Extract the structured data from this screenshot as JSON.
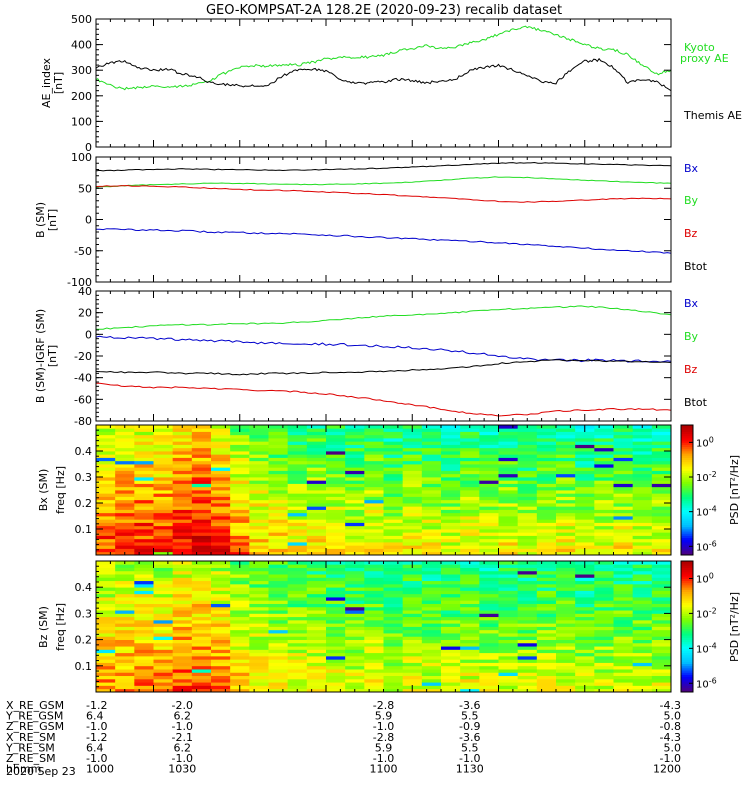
{
  "title": "GEO-KOMPSAT-2A 128.2E (2020-09-23) recalib dataset",
  "colors": {
    "black": "#000000",
    "green": "#22dd22",
    "red": "#dd0000",
    "blue": "#0000cc",
    "colorbar": [
      "#4b0082",
      "#0000ff",
      "#00bfff",
      "#00ffff",
      "#00ff7f",
      "#7fff00",
      "#ffff00",
      "#ffa500",
      "#ff0000",
      "#b00000"
    ]
  },
  "chart_data": [
    {
      "type": "line",
      "panel": "ae",
      "ylabel": "AE_index",
      "yunit": "[nT]",
      "ylim": [
        0,
        500
      ],
      "yticks": [
        0,
        100,
        200,
        300,
        400,
        500
      ],
      "xlim": [
        1000,
        1200
      ],
      "x": [
        1000,
        1005,
        1010,
        1015,
        1020,
        1025,
        1030,
        1035,
        1040,
        1045,
        1050,
        1055,
        1060,
        1065,
        1070,
        1075,
        1080,
        1085,
        1090,
        1095,
        1100,
        1105,
        1110,
        1115,
        1120,
        1125,
        1130,
        1135,
        1140,
        1145,
        1150,
        1155,
        1160,
        1165,
        1170,
        1175,
        1180,
        1185,
        1190,
        1195,
        1200
      ],
      "series": [
        {
          "name": "Kyoto proxy AE",
          "color": "green",
          "values": [
            265,
            240,
            228,
            232,
            240,
            235,
            238,
            245,
            262,
            290,
            310,
            318,
            316,
            322,
            320,
            330,
            345,
            350,
            352,
            350,
            358,
            375,
            385,
            395,
            385,
            390,
            405,
            420,
            440,
            460,
            470,
            455,
            440,
            420,
            400,
            385,
            380,
            360,
            320,
            285,
            300
          ]
        },
        {
          "name": "Themis AE",
          "color": "black",
          "values": [
            310,
            330,
            335,
            310,
            300,
            305,
            285,
            275,
            250,
            245,
            240,
            238,
            240,
            280,
            300,
            305,
            298,
            262,
            248,
            250,
            255,
            265,
            260,
            250,
            260,
            265,
            300,
            310,
            320,
            300,
            280,
            255,
            250,
            300,
            335,
            340,
            310,
            250,
            265,
            255,
            220
          ]
        }
      ]
    },
    {
      "type": "line",
      "panel": "bsm",
      "ylabel": "B (SM)",
      "yunit": "[nT]",
      "ylim": [
        -100,
        100
      ],
      "yticks": [
        -100,
        -50,
        0,
        50,
        100
      ],
      "xlim": [
        1000,
        1200
      ],
      "x": [
        1000,
        1010,
        1020,
        1030,
        1040,
        1050,
        1060,
        1070,
        1080,
        1090,
        1100,
        1110,
        1120,
        1130,
        1140,
        1150,
        1160,
        1170,
        1180,
        1190,
        1200
      ],
      "series": [
        {
          "name": "Bx",
          "color": "blue",
          "values": [
            -15,
            -16,
            -17,
            -18,
            -20,
            -21,
            -22,
            -23,
            -25,
            -27,
            -29,
            -31,
            -33,
            -35,
            -37,
            -40,
            -43,
            -46,
            -49,
            -51,
            -54
          ]
        },
        {
          "name": "By",
          "color": "green",
          "values": [
            52,
            54,
            56,
            57,
            58,
            58,
            57,
            56,
            56,
            57,
            58,
            60,
            63,
            66,
            68,
            67,
            65,
            63,
            61,
            59,
            58
          ]
        },
        {
          "name": "Bz",
          "color": "red",
          "values": [
            53,
            54,
            53,
            52,
            50,
            48,
            47,
            46,
            44,
            42,
            40,
            37,
            35,
            32,
            29,
            28,
            29,
            31,
            33,
            34,
            33
          ]
        },
        {
          "name": "Btot",
          "color": "black",
          "values": [
            78,
            79,
            80,
            81,
            80,
            80,
            79,
            79,
            80,
            81,
            82,
            84,
            86,
            88,
            90,
            91,
            90,
            89,
            88,
            87,
            86
          ]
        }
      ]
    },
    {
      "type": "line",
      "panel": "bsm_igrf",
      "ylabel": "B (SM)-IGRF (SM)",
      "yunit": "[nT]",
      "ylim": [
        -80,
        40
      ],
      "yticks": [
        -80,
        -60,
        -40,
        -20,
        0,
        20,
        40
      ],
      "xlim": [
        1000,
        1200
      ],
      "x": [
        1000,
        1010,
        1020,
        1030,
        1040,
        1050,
        1060,
        1070,
        1080,
        1090,
        1100,
        1110,
        1120,
        1130,
        1140,
        1150,
        1160,
        1170,
        1180,
        1190,
        1200
      ],
      "series": [
        {
          "name": "Bx",
          "color": "blue",
          "values": [
            -2,
            -3,
            -4,
            -5,
            -6,
            -7,
            -8,
            -8,
            -9,
            -10,
            -11,
            -12,
            -14,
            -17,
            -20,
            -23,
            -24,
            -24,
            -24,
            -25,
            -25
          ]
        },
        {
          "name": "By",
          "color": "green",
          "values": [
            5,
            6,
            8,
            9,
            9,
            10,
            10,
            11,
            13,
            15,
            17,
            18,
            19,
            21,
            23,
            24,
            25,
            26,
            24,
            21,
            18
          ]
        },
        {
          "name": "Bz",
          "color": "red",
          "values": [
            -45,
            -48,
            -49,
            -49,
            -50,
            -51,
            -52,
            -53,
            -55,
            -58,
            -61,
            -65,
            -69,
            -73,
            -75,
            -74,
            -71,
            -70,
            -69,
            -69,
            -70
          ]
        },
        {
          "name": "Btot",
          "color": "black",
          "values": [
            -34,
            -35,
            -35,
            -36,
            -36,
            -37,
            -36,
            -36,
            -35,
            -35,
            -34,
            -33,
            -32,
            -30,
            -27,
            -25,
            -24,
            -24,
            -25,
            -25,
            -26
          ]
        }
      ]
    },
    {
      "type": "heatmap",
      "panel": "bx_spec",
      "ylabel": "Bx (SM)",
      "y2label": "freq",
      "yunit": "[Hz]",
      "ylim": [
        0,
        0.5
      ],
      "yticks": [
        0.1,
        0.2,
        0.3,
        0.4
      ],
      "xlim": [
        1000,
        1200
      ],
      "colorbar": {
        "label": "PSD",
        "unit": "[nT²/Hz]",
        "zlim_log10": [
          -6.5,
          1
        ],
        "ticks": [
          {
            "base": "10",
            "exp": "0",
            "log": 0
          },
          {
            "base": "10",
            "exp": "-2",
            "log": -2
          },
          {
            "base": "10",
            "exp": "-4",
            "log": -4
          },
          {
            "base": "10",
            "exp": "-6",
            "log": -6
          }
        ]
      },
      "time_profile_log10": [
        -1.2,
        -1.0,
        -0.9,
        -1.0,
        -0.6,
        -0.4,
        -0.8,
        -1.6,
        -2.0,
        -2.1,
        -2.3,
        -2.2,
        -2.4,
        -2.5,
        -2.3,
        -2.6,
        -2.4,
        -2.5,
        -2.7,
        -2.4,
        -2.6,
        -2.5,
        -2.7,
        -2.6,
        -2.5,
        -2.8,
        -2.6,
        -2.5,
        -2.7,
        -2.6
      ],
      "freq_slope_log10_per_hz": -4.2,
      "noise_seed": 7
    },
    {
      "type": "heatmap",
      "panel": "bz_spec",
      "ylabel": "Bz (SM)",
      "y2label": "freq",
      "yunit": "[Hz]",
      "ylim": [
        0,
        0.5
      ],
      "yticks": [
        0.1,
        0.2,
        0.3,
        0.4
      ],
      "xlim": [
        1000,
        1200
      ],
      "colorbar": {
        "label": "PSD",
        "unit": "[nT²/Hz]",
        "zlim_log10": [
          -6.5,
          1
        ],
        "ticks": [
          {
            "base": "10",
            "exp": "0",
            "log": 0
          },
          {
            "base": "10",
            "exp": "-2",
            "log": -2
          },
          {
            "base": "10",
            "exp": "-4",
            "log": -4
          },
          {
            "base": "10",
            "exp": "-6",
            "log": -6
          }
        ]
      },
      "time_profile_log10": [
        -1.8,
        -1.7,
        -1.6,
        -1.7,
        -1.4,
        -1.3,
        -1.6,
        -2.1,
        -2.4,
        -2.5,
        -2.6,
        -2.6,
        -2.7,
        -2.8,
        -2.6,
        -2.9,
        -2.7,
        -2.8,
        -2.9,
        -2.7,
        -2.9,
        -2.8,
        -2.9,
        -2.8,
        -2.8,
        -3.0,
        -2.9,
        -2.8,
        -2.9,
        -2.9
      ],
      "freq_slope_log10_per_hz": -3.4,
      "noise_seed": 13
    }
  ],
  "panel_labels": {
    "ae": {
      "ylabel": "AE_index",
      "yunit": "[nT]"
    },
    "bsm": {
      "ylabel": "B (SM)",
      "yunit": "[nT]"
    },
    "bsm_igrf": {
      "ylabel": "B (SM)-IGRF (SM)",
      "yunit": "[nT]"
    },
    "bx_spec": {
      "ylabel": "Bx (SM)",
      "y2label": "freq",
      "yunit": "[Hz]",
      "cblabel": "PSD",
      "cbunit": "[nT²/Hz]"
    },
    "bz_spec": {
      "ylabel": "Bz (SM)",
      "y2label": "freq",
      "yunit": "[Hz]",
      "cblabel": "PSD",
      "cbunit": "[nT²/Hz]"
    }
  },
  "legends": {
    "ae": [
      "Kyoto",
      "proxy AE",
      "Themis AE"
    ],
    "bsm": [
      "Bx",
      "By",
      "Bz",
      "Btot"
    ],
    "bsm_igrf": [
      "Bx",
      "By",
      "Bz",
      "Btot"
    ]
  },
  "ephemeris": {
    "labels": [
      "X_RE_GSM",
      "Y_RE_GSM",
      "Z_RE_GSM",
      "X_RE_SM",
      "Y_RE_SM",
      "Z_RE_SM",
      "hhmm"
    ],
    "date": "2020 Sep 23",
    "times": [
      1000,
      1030,
      1100,
      1130,
      1200
    ],
    "values": [
      [
        "-1.2",
        "-2.0",
        "-2.8",
        "-3.6",
        "-4.3"
      ],
      [
        "6.4",
        "6.2",
        "5.9",
        "5.5",
        "5.0"
      ],
      [
        "-1.0",
        "-1.0",
        "-1.0",
        "-0.9",
        "-0.8"
      ],
      [
        "-1.2",
        "-2.1",
        "-2.8",
        "-3.6",
        "-4.3"
      ],
      [
        "6.4",
        "6.2",
        "5.9",
        "5.5",
        "5.0"
      ],
      [
        "-1.0",
        "-1.0",
        "-1.0",
        "-1.0",
        "-1.0"
      ],
      [
        "1000",
        "1030",
        "1100",
        "1130",
        "1200"
      ]
    ]
  }
}
